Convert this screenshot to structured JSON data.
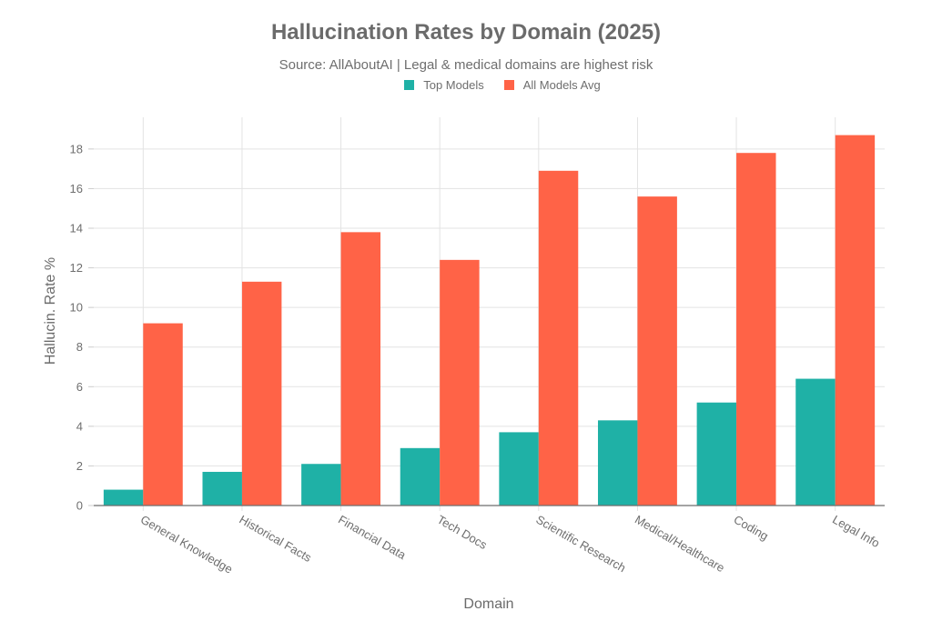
{
  "chart_data": {
    "type": "bar",
    "title": "Hallucination Rates by Domain (2025)",
    "subtitle": "Source: AllAboutAI | Legal & medical domains are highest risk",
    "xlabel": "Domain",
    "ylabel": "Hallucin. Rate %",
    "categories": [
      "General Knowledge",
      "Historical Facts",
      "Financial Data",
      "Tech Docs",
      "Scientific Research",
      "Medical/Healthcare",
      "Coding",
      "Legal Info"
    ],
    "series": [
      {
        "name": "Top Models",
        "color": "#1fb1a6",
        "values": [
          0.8,
          1.7,
          2.1,
          2.9,
          3.7,
          4.3,
          5.2,
          6.4
        ]
      },
      {
        "name": "All Models Avg",
        "color": "#ff6347",
        "values": [
          9.2,
          11.3,
          13.8,
          12.4,
          16.9,
          15.6,
          17.8,
          18.7
        ]
      }
    ],
    "ylim": [
      0,
      19.6
    ],
    "yticks": [
      0,
      2,
      4,
      6,
      8,
      10,
      12,
      14,
      16,
      18
    ],
    "grid": true,
    "legend_position": "top-center"
  },
  "legend": {
    "items": [
      {
        "label": "Top Models",
        "color": "#1fb1a6"
      },
      {
        "label": "All Models Avg",
        "color": "#ff6347"
      }
    ]
  }
}
